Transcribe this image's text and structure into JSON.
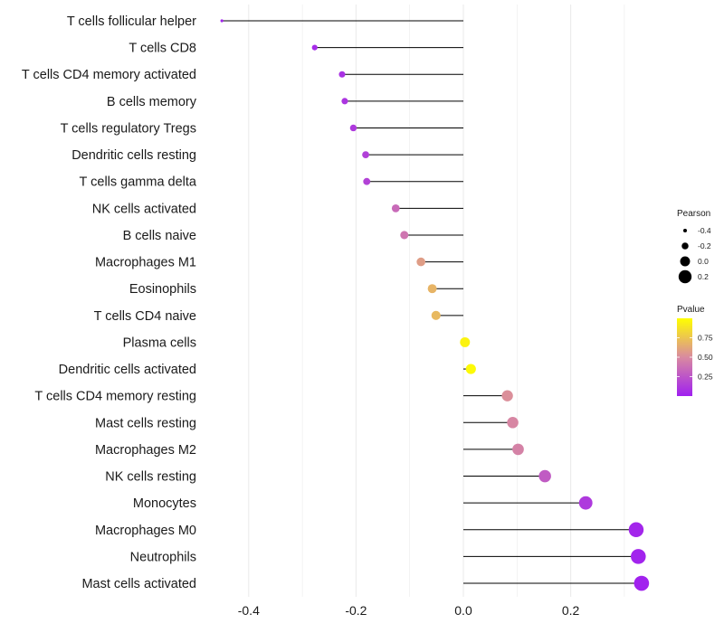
{
  "chart_data": {
    "type": "lollipop",
    "title": "",
    "xlabel": "",
    "ylabel": "",
    "xlim": [
      -0.45,
      0.33
    ],
    "x_ticks": [
      -0.4,
      -0.2,
      0.0,
      0.2
    ],
    "x_tick_labels": [
      "-0.4",
      "-0.2",
      "0.0",
      "0.2"
    ],
    "grid": "vertical",
    "categories": [
      "T cells follicular helper",
      "T cells CD8",
      "T cells CD4 memory activated",
      "B cells memory",
      "T cells regulatory  Tregs",
      "Dendritic cells resting",
      "T cells gamma delta",
      "NK cells activated",
      "B cells naive",
      "Macrophages M1",
      "Eosinophils",
      "T cells CD4 naive",
      "Plasma cells",
      "Dendritic cells activated",
      "T cells CD4 memory resting",
      "Mast cells resting",
      "Macrophages M2",
      "NK cells resting",
      "Monocytes",
      "Macrophages M0",
      "Neutrophils",
      "Mast cells activated"
    ],
    "values": [
      -0.45,
      -0.277,
      -0.226,
      -0.221,
      -0.205,
      -0.182,
      -0.18,
      -0.126,
      -0.11,
      -0.079,
      -0.058,
      -0.051,
      0.003,
      0.014,
      0.082,
      0.092,
      0.102,
      0.152,
      0.228,
      0.322,
      0.326,
      0.332
    ],
    "pvalues": [
      0.02,
      0.05,
      0.08,
      0.1,
      0.12,
      0.15,
      0.16,
      0.35,
      0.4,
      0.58,
      0.68,
      0.7,
      0.95,
      0.98,
      0.52,
      0.48,
      0.46,
      0.28,
      0.12,
      0.03,
      0.02,
      0.01
    ],
    "size_legend": {
      "title": "Pearson",
      "entries": [
        {
          "label": "-0.4",
          "value": -0.4
        },
        {
          "label": "-0.2",
          "value": -0.2
        },
        {
          "label": "0.0",
          "value": 0.0
        },
        {
          "label": "0.2",
          "value": 0.2
        }
      ]
    },
    "color_legend": {
      "title": "Pvalue",
      "low_color": "#a020f0",
      "mid_color": "#d98aa0",
      "high_color": "#ffff00",
      "ticks": [
        {
          "label": "0.75",
          "value": 0.75
        },
        {
          "label": "0.50",
          "value": 0.5
        },
        {
          "label": "0.25",
          "value": 0.25
        }
      ],
      "range": [
        0.0,
        1.0
      ]
    }
  },
  "colors": {
    "grid": "#ebebeb",
    "segment": "#000000"
  }
}
